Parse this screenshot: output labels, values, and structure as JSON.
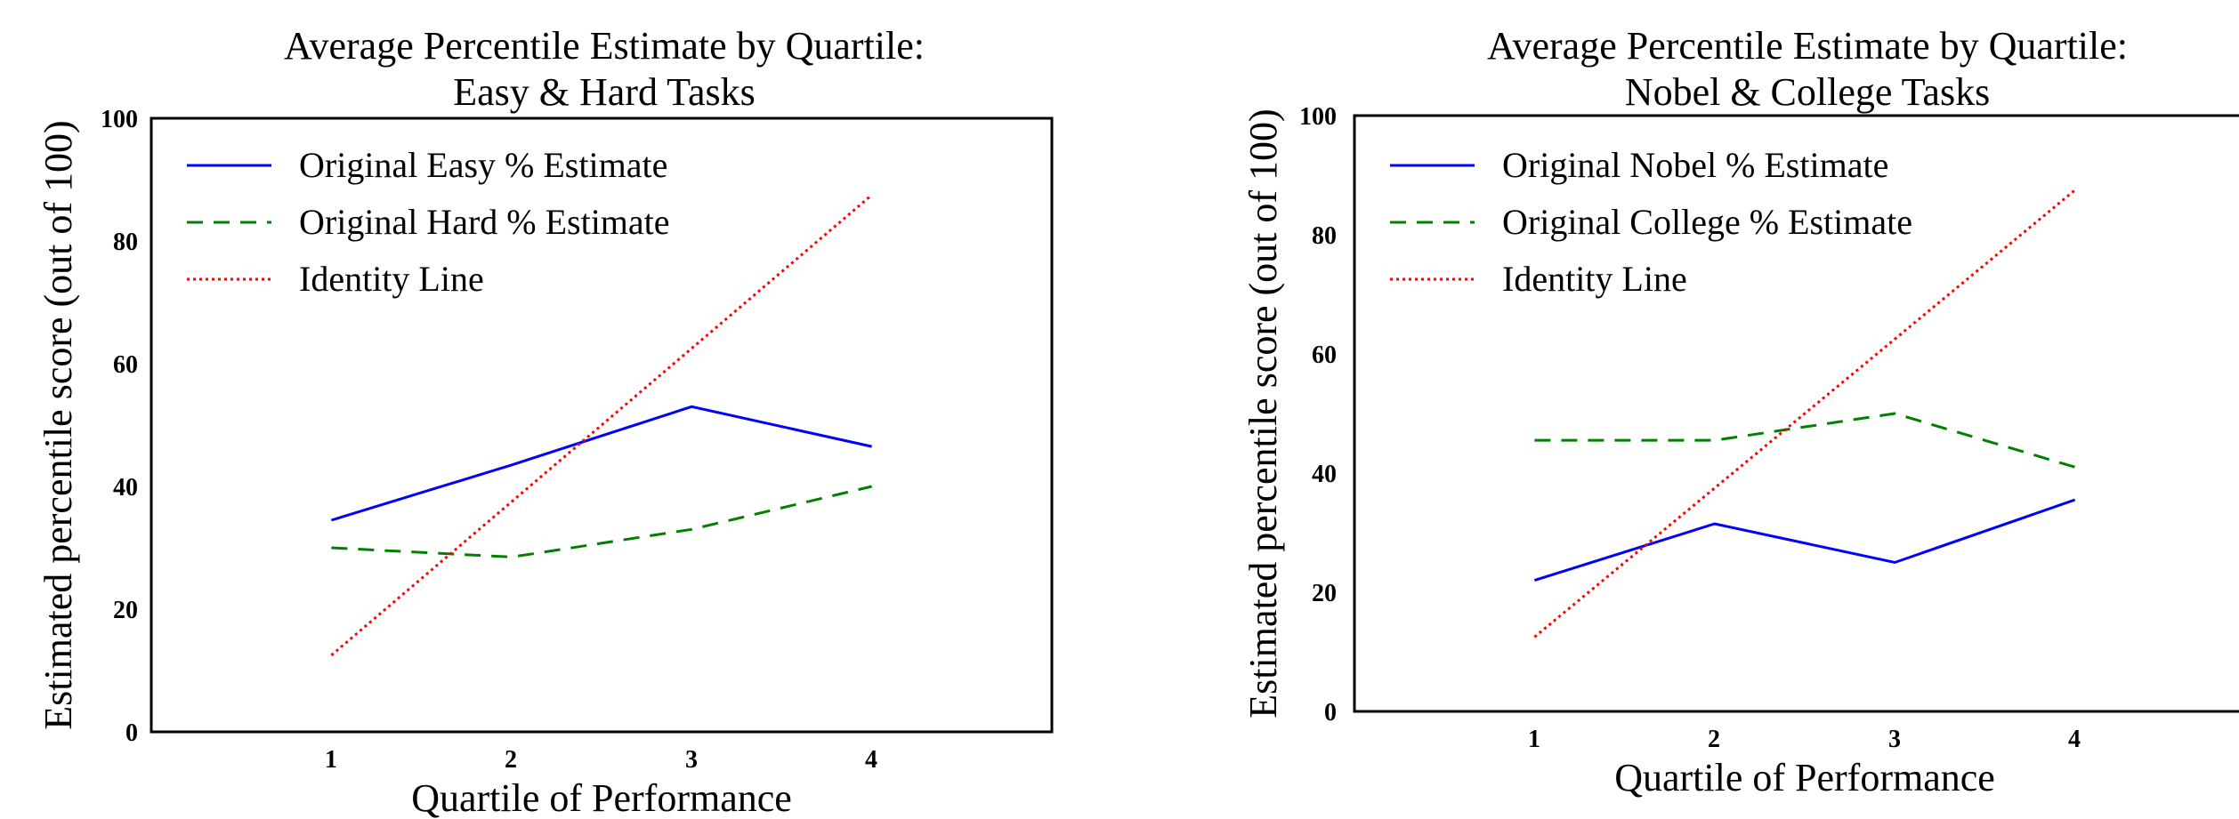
{
  "chart_data": [
    {
      "type": "line",
      "title": "Average Percentile Estimate by Quartile:",
      "subtitle": "Easy & Hard Tasks",
      "xlabel": "Quartile of Performance",
      "ylabel": "Estimated percentile score (out of 100)",
      "x": [
        1,
        2,
        3,
        4
      ],
      "xlim": [
        0,
        5
      ],
      "ylim": [
        0,
        100
      ],
      "x_ticks": [
        "1",
        "2",
        "3",
        "4"
      ],
      "y_ticks": [
        "0",
        "20",
        "40",
        "60",
        "80",
        "100"
      ],
      "grid": false,
      "legend_position": "top-left",
      "series": [
        {
          "name": "Original Easy % Estimate",
          "values": [
            34.5,
            43.5,
            53,
            46.5
          ],
          "color": "#0000ff",
          "style": "solid"
        },
        {
          "name": "Original Hard % Estimate",
          "values": [
            30,
            28.5,
            33,
            40
          ],
          "color": "#008000",
          "style": "dashed"
        },
        {
          "name": "Identity Line",
          "values": [
            12.5,
            37.5,
            62.5,
            87.5
          ],
          "color": "#ff0000",
          "style": "dotted"
        }
      ]
    },
    {
      "type": "line",
      "title": "Average Percentile Estimate by Quartile:",
      "subtitle": "Nobel & College Tasks",
      "xlabel": "Quartile of Performance",
      "ylabel": "Estimated percentile score (out of 100)",
      "x": [
        1,
        2,
        3,
        4
      ],
      "xlim": [
        0,
        5
      ],
      "ylim": [
        0,
        100
      ],
      "x_ticks": [
        "1",
        "2",
        "3",
        "4"
      ],
      "y_ticks": [
        "0",
        "20",
        "40",
        "60",
        "80",
        "100"
      ],
      "grid": false,
      "legend_position": "top-left",
      "series": [
        {
          "name": "Original Nobel % Estimate",
          "values": [
            22,
            31.5,
            25,
            35.5
          ],
          "color": "#0000ff",
          "style": "solid"
        },
        {
          "name": "Original College % Estimate",
          "values": [
            45.5,
            45.5,
            50,
            41
          ],
          "color": "#008000",
          "style": "dashed"
        },
        {
          "name": "Identity Line",
          "values": [
            12.5,
            37.5,
            62.5,
            87.5
          ],
          "color": "#ff0000",
          "style": "dotted"
        }
      ]
    }
  ]
}
